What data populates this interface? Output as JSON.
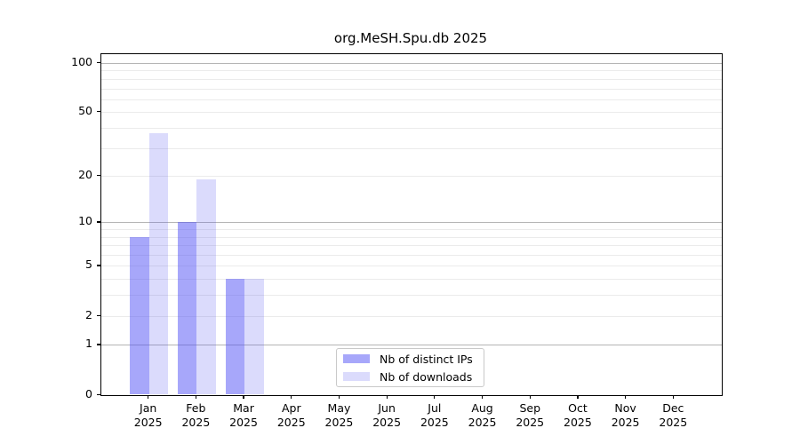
{
  "chart_data": {
    "type": "bar",
    "title": "org.MeSH.Spu.db 2025",
    "categories": [
      "Jan",
      "Feb",
      "Mar",
      "Apr",
      "May",
      "Jun",
      "Jul",
      "Aug",
      "Sep",
      "Oct",
      "Nov",
      "Dec"
    ],
    "x_year": "2025",
    "series": [
      {
        "name": "Nb of distinct IPs",
        "color": "rgba(80,80,245,0.5)",
        "values": [
          8,
          10,
          4,
          0,
          0,
          0,
          0,
          0,
          0,
          0,
          0,
          0
        ]
      },
      {
        "name": "Nb of downloads",
        "color": "rgba(85,85,240,0.21)",
        "values": [
          37,
          19,
          4,
          0,
          0,
          0,
          0,
          0,
          0,
          0,
          0,
          0
        ]
      }
    ],
    "yscale": "log1p",
    "ylim": [
      0,
      114
    ],
    "y_tick_labels": [
      0,
      1,
      2,
      5,
      10,
      20,
      50,
      100
    ],
    "y_gridlines_major": [
      1,
      10,
      100
    ],
    "y_gridlines_minor": [
      2,
      3,
      4,
      5,
      6,
      7,
      8,
      9,
      20,
      30,
      40,
      50,
      60,
      70,
      80,
      90
    ],
    "grid": true,
    "legend_position": "bottom-center"
  }
}
